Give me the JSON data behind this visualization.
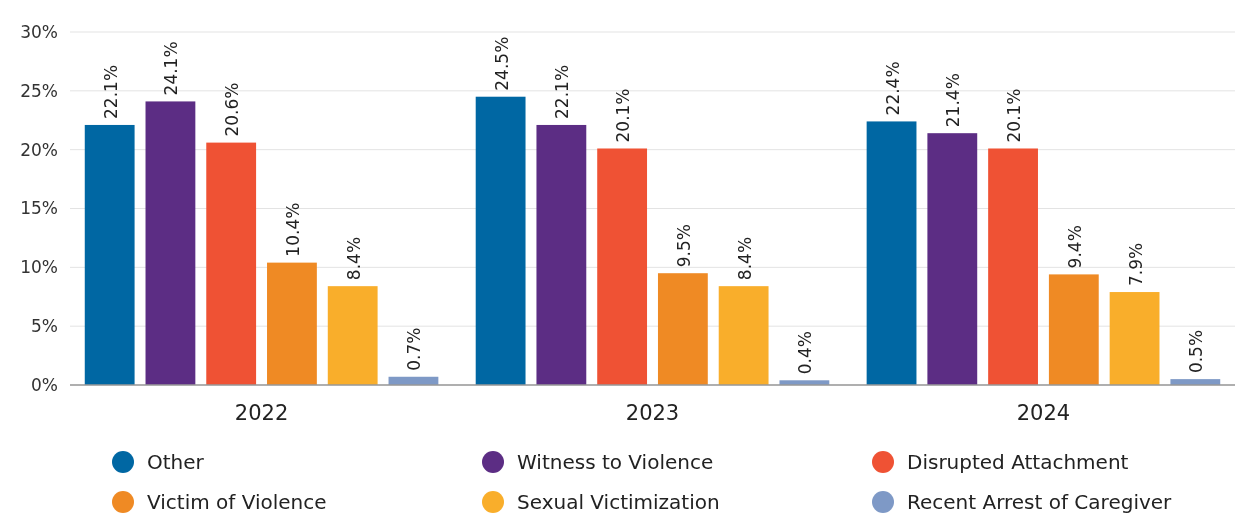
{
  "chart_data": {
    "type": "bar",
    "categories": [
      "2022",
      "2023",
      "2024"
    ],
    "series": [
      {
        "name": "Other",
        "color": "#0067a3",
        "values": [
          22.1,
          24.5,
          22.4
        ],
        "value_labels": [
          "22.1%",
          "24.5%",
          "22.4%"
        ]
      },
      {
        "name": "Witness to Violence",
        "color": "#5c2d84",
        "values": [
          24.1,
          22.1,
          21.4
        ],
        "value_labels": [
          "24.1%",
          "22.1%",
          "21.4%"
        ]
      },
      {
        "name": "Disrupted Attachment",
        "color": "#ef5234",
        "values": [
          20.6,
          20.1,
          20.1
        ],
        "value_labels": [
          "20.6%",
          "20.1%",
          "20.1%"
        ]
      },
      {
        "name": "Victim of Violence",
        "color": "#ef8a24",
        "values": [
          10.4,
          9.5,
          9.4
        ],
        "value_labels": [
          "10.4%",
          "9.5%",
          "9.4%"
        ]
      },
      {
        "name": "Sexual Victimization",
        "color": "#f9ae2b",
        "values": [
          8.4,
          8.4,
          7.9
        ],
        "value_labels": [
          "8.4%",
          "8.4%",
          "7.9%"
        ]
      },
      {
        "name": "Recent Arrest of Caregiver",
        "color": "#7e99c6",
        "values": [
          0.7,
          0.4,
          0.5
        ],
        "value_labels": [
          "0.7%",
          "0.4%",
          "0.5%"
        ]
      }
    ],
    "ylim": [
      0,
      30
    ],
    "yticks": [
      {
        "value": 0,
        "label": "0%"
      },
      {
        "value": 5,
        "label": "5%"
      },
      {
        "value": 10,
        "label": "10%"
      },
      {
        "value": 15,
        "label": "15%"
      },
      {
        "value": 20,
        "label": "20%"
      },
      {
        "value": 25,
        "label": "25%"
      },
      {
        "value": 30,
        "label": "30%"
      }
    ],
    "grid": "y",
    "legend": "bottom",
    "marker": "circle"
  }
}
